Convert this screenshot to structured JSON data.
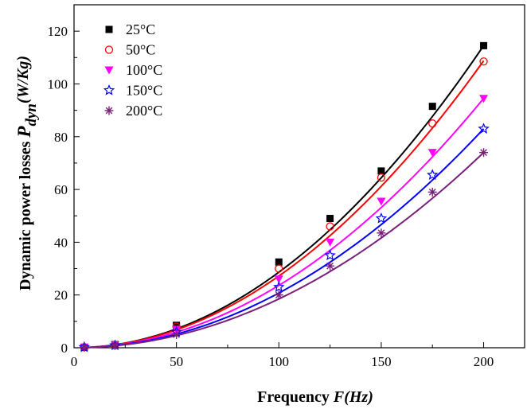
{
  "chart_data": {
    "type": "scatter",
    "xlabel_prefix": "Frequency ",
    "xlabel_italic": "F(Hz)",
    "ylabel_prefix": "Dynamic power losses ",
    "ylabel_symbol": "P",
    "ylabel_sub": "dyn",
    "ylabel_unit": "(W/Kg)",
    "xlim": [
      0,
      220
    ],
    "ylim": [
      0,
      130
    ],
    "x_ticks": [
      0,
      50,
      100,
      150,
      200
    ],
    "y_ticks": [
      0,
      20,
      40,
      60,
      80,
      100,
      120
    ],
    "legend_position": "top-left",
    "grid": false,
    "x": [
      5,
      20,
      50,
      100,
      125,
      150,
      175,
      200
    ],
    "series": [
      {
        "name": "25°C",
        "marker": "square",
        "color": "#000000",
        "values": [
          0.2,
          1.2,
          8.5,
          32.5,
          49,
          67,
          91.5,
          114.5
        ],
        "fit_a": 0.002863
      },
      {
        "name": "50°C",
        "marker": "circle-open",
        "color": "#ff0000",
        "values": [
          0.2,
          1.1,
          8,
          30,
          46,
          64.5,
          85,
          108.5
        ],
        "fit_a": 0.00272
      },
      {
        "name": "100°C",
        "marker": "triangle-down",
        "color": "#ff00ff",
        "values": [
          0.2,
          1,
          7,
          26,
          40,
          55.5,
          74,
          94.5
        ],
        "fit_a": 0.002363
      },
      {
        "name": "150°C",
        "marker": "star-open",
        "color": "#0000ff",
        "values": [
          0.2,
          0.9,
          6,
          23,
          35,
          49,
          65.5,
          83
        ],
        "fit_a": 0.002075
      },
      {
        "name": "200°C",
        "marker": "asterisk",
        "color": "#7a1f7a",
        "values": [
          0.2,
          0.8,
          5,
          20,
          31,
          43.5,
          59,
          74
        ],
        "fit_a": 0.00185
      }
    ]
  }
}
